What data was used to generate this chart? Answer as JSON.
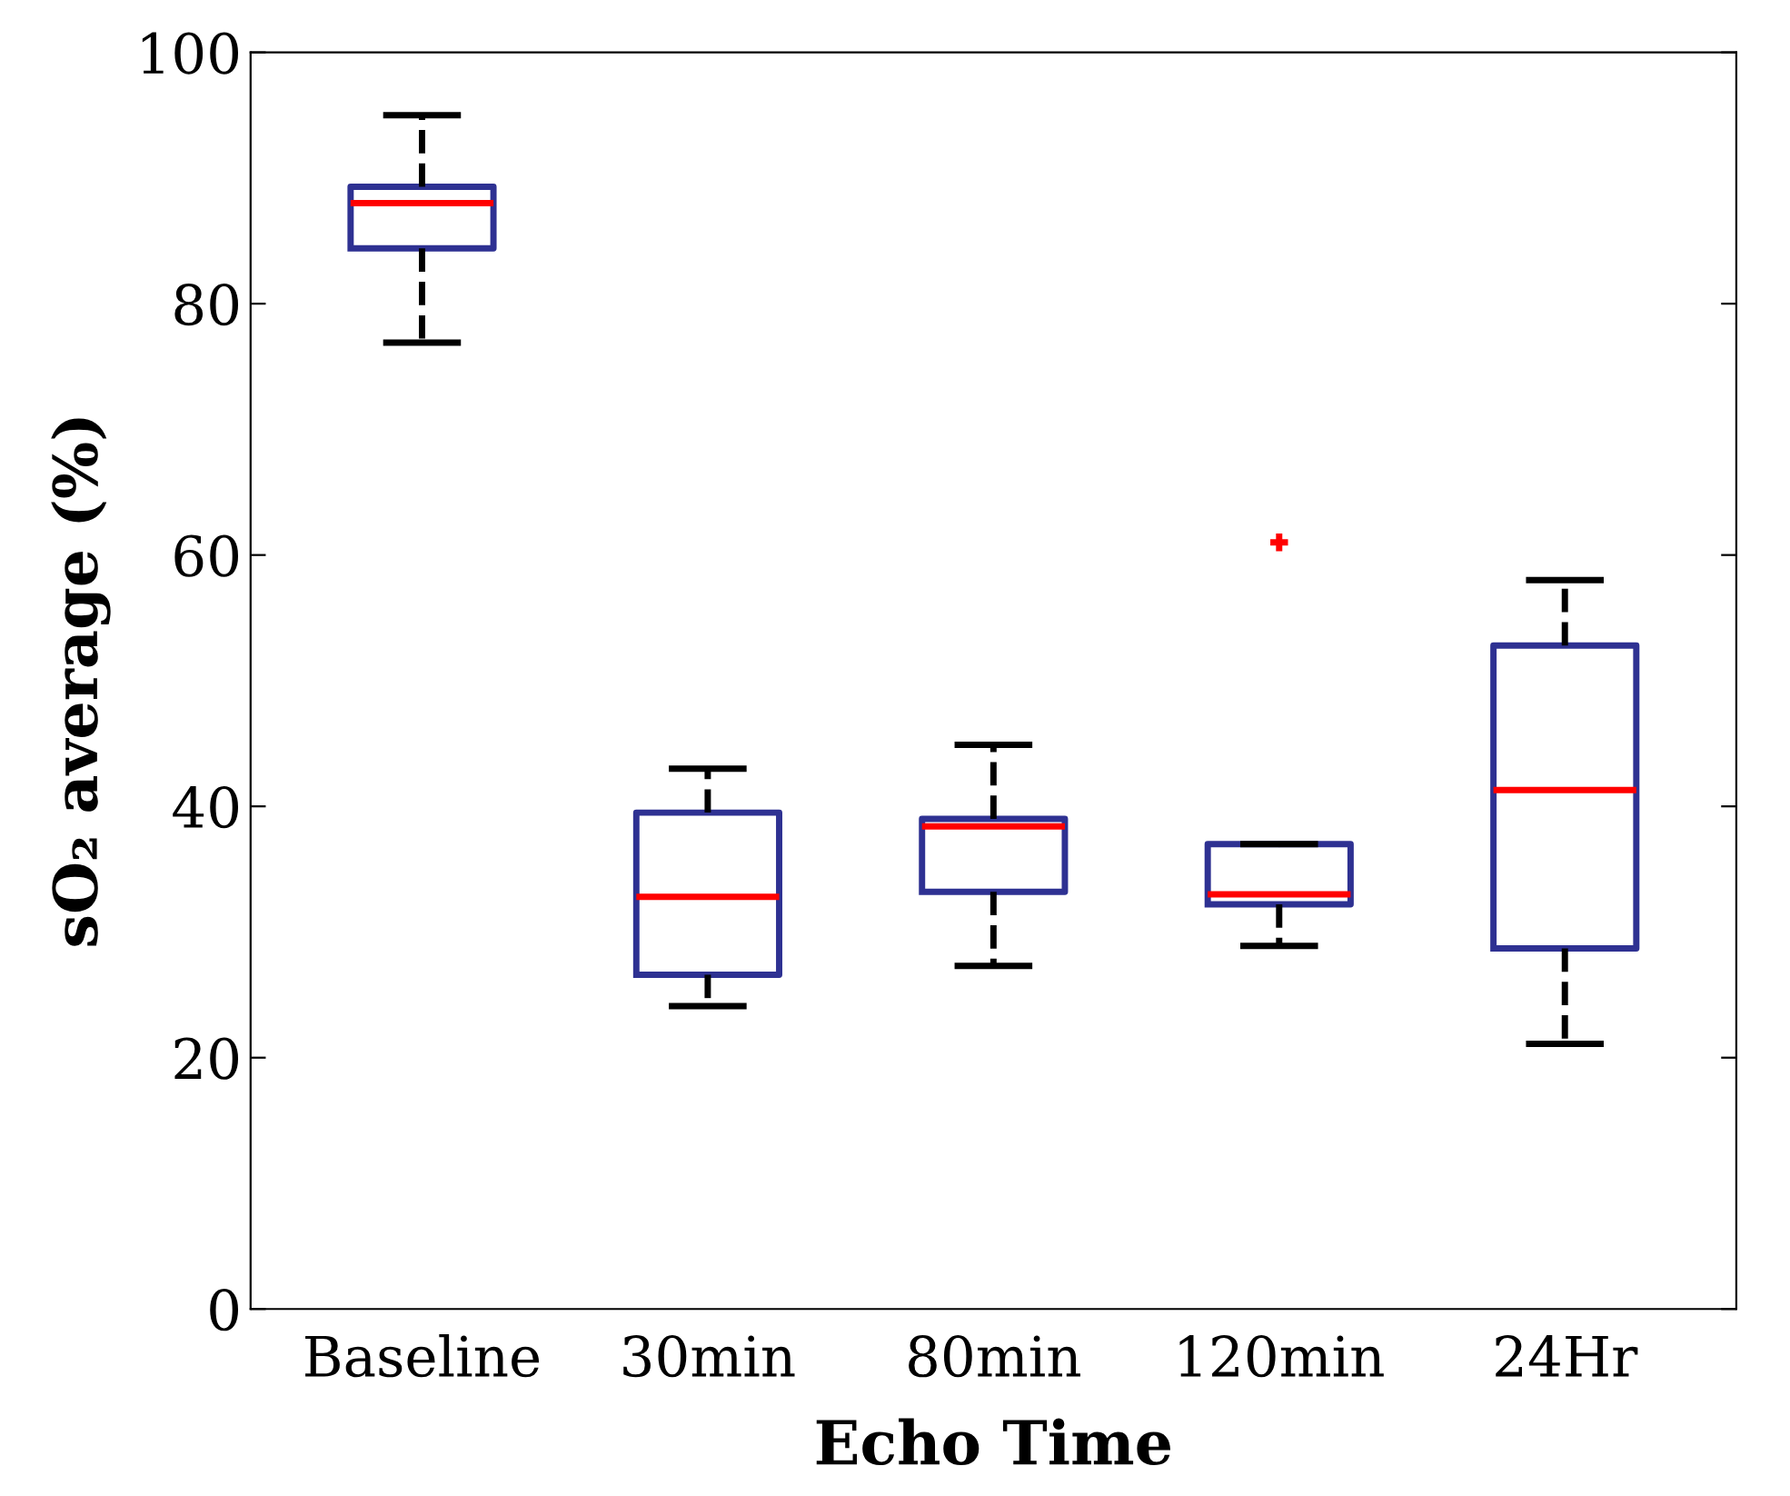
{
  "chart_data": {
    "type": "box",
    "xlabel": "Echo Time",
    "ylabel": "sO₂ average (%)",
    "categories": [
      "Baseline",
      "30min",
      "80min",
      "120min",
      "24Hr"
    ],
    "boxes": [
      {
        "low": 76.9,
        "q1": 84.4,
        "median": 88.0,
        "q3": 89.3,
        "high": 95.0
      },
      {
        "low": 24.1,
        "q1": 26.6,
        "median": 32.8,
        "q3": 39.5,
        "high": 43.0
      },
      {
        "low": 27.3,
        "q1": 33.2,
        "median": 38.4,
        "q3": 39.0,
        "high": 44.9
      },
      {
        "low": 28.9,
        "q1": 32.2,
        "median": 33.0,
        "q3": 37.0,
        "high": 37.0,
        "outliers": [
          61.0
        ]
      },
      {
        "low": 21.1,
        "q1": 28.7,
        "median": 41.3,
        "q3": 52.8,
        "high": 58.0
      }
    ],
    "color": "#2e3192",
    "ylim": [
      0,
      100
    ],
    "yticks": [
      0,
      20,
      40,
      60,
      80,
      100
    ],
    "grid": false
  }
}
